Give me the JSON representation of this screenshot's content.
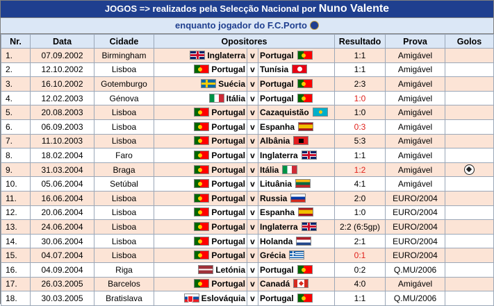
{
  "title": {
    "prefix": "JOGOS => realizados pela Selecção Nacional por ",
    "name": "Nuno Valente"
  },
  "subtitle": "enquanto jogador do F.C.Porto",
  "headers": {
    "nr": "Nr.",
    "data": "Data",
    "cidade": "Cidade",
    "opositores": "Opositores",
    "resultado": "Resultado",
    "prova": "Prova",
    "golos": "Golos"
  },
  "rows": [
    {
      "nr": "1.",
      "data": "07.09.2002",
      "cidade": "Birmingham",
      "home": "Inglaterra",
      "home_flag": "EN",
      "v": "v",
      "away": "Portugal",
      "away_flag": "PT",
      "resultado": "1:1",
      "result_color": "black",
      "prova": "Amigável",
      "golos": ""
    },
    {
      "nr": "2.",
      "data": "12.10.2002",
      "cidade": "Lisboa",
      "home": "Portugal",
      "home_flag": "PT",
      "v": "v",
      "away": "Tunísia",
      "away_flag": "TN",
      "resultado": "1:1",
      "result_color": "black",
      "prova": "Amigável",
      "golos": ""
    },
    {
      "nr": "3.",
      "data": "16.10.2002",
      "cidade": "Gotemburgo",
      "home": "Suécia",
      "home_flag": "SE",
      "v": "v",
      "away": "Portugal",
      "away_flag": "PT",
      "resultado": "2:3",
      "result_color": "black",
      "prova": "Amigável",
      "golos": ""
    },
    {
      "nr": "4.",
      "data": "12.02.2003",
      "cidade": "Génova",
      "home": "Itália",
      "home_flag": "IT",
      "v": "v",
      "away": "Portugal",
      "away_flag": "PT",
      "resultado": "1:0",
      "result_color": "red",
      "prova": "Amigável",
      "golos": ""
    },
    {
      "nr": "5.",
      "data": "20.08.2003",
      "cidade": "Lisboa",
      "home": "Portugal",
      "home_flag": "PT",
      "v": "v",
      "away": "Cazaquistão",
      "away_flag": "KZ",
      "resultado": "1:0",
      "result_color": "black",
      "prova": "Amigável",
      "golos": ""
    },
    {
      "nr": "6.",
      "data": "06.09.2003",
      "cidade": "Lisboa",
      "home": "Portugal",
      "home_flag": "PT",
      "v": "v",
      "away": "Espanha",
      "away_flag": "ES",
      "resultado": "0:3",
      "result_color": "red",
      "prova": "Amigável",
      "golos": ""
    },
    {
      "nr": "7.",
      "data": "11.10.2003",
      "cidade": "Lisboa",
      "home": "Portugal",
      "home_flag": "PT",
      "v": "v",
      "away": "Albânia",
      "away_flag": "AL",
      "resultado": "5:3",
      "result_color": "black",
      "prova": "Amigável",
      "golos": ""
    },
    {
      "nr": "8.",
      "data": "18.02.2004",
      "cidade": "Faro",
      "home": "Portugal",
      "home_flag": "PT",
      "v": "v",
      "away": "Inglaterra",
      "away_flag": "EN",
      "resultado": "1:1",
      "result_color": "black",
      "prova": "Amigável",
      "golos": ""
    },
    {
      "nr": "9.",
      "data": "31.03.2004",
      "cidade": "Braga",
      "home": "Portugal",
      "home_flag": "PT",
      "v": "v",
      "away": "Itália",
      "away_flag": "IT",
      "resultado": "1:2",
      "result_color": "red",
      "prova": "Amigável",
      "golos": "1"
    },
    {
      "nr": "10.",
      "data": "05.06.2004",
      "cidade": "Setúbal",
      "home": "Portugal",
      "home_flag": "PT",
      "v": "v",
      "away": "Lituânia",
      "away_flag": "LT",
      "resultado": "4:1",
      "result_color": "black",
      "prova": "Amigável",
      "golos": ""
    },
    {
      "nr": "11.",
      "data": "16.06.2004",
      "cidade": "Lisboa",
      "home": "Portugal",
      "home_flag": "PT",
      "v": "v",
      "away": "Russia",
      "away_flag": "RU",
      "resultado": "2:0",
      "result_color": "black",
      "prova": "EURO/2004",
      "golos": ""
    },
    {
      "nr": "12.",
      "data": "20.06.2004",
      "cidade": "Lisboa",
      "home": "Portugal",
      "home_flag": "PT",
      "v": "v",
      "away": "Espanha",
      "away_flag": "ES",
      "resultado": "1:0",
      "result_color": "black",
      "prova": "EURO/2004",
      "golos": ""
    },
    {
      "nr": "13.",
      "data": "24.06.2004",
      "cidade": "Lisboa",
      "home": "Portugal",
      "home_flag": "PT",
      "v": "v",
      "away": "Inglaterra",
      "away_flag": "EN",
      "resultado": "2:2 (6:5gp)",
      "result_color": "black",
      "prova": "EURO/2004",
      "golos": ""
    },
    {
      "nr": "14.",
      "data": "30.06.2004",
      "cidade": "Lisboa",
      "home": "Portugal",
      "home_flag": "PT",
      "v": "v",
      "away": "Holanda",
      "away_flag": "NL",
      "resultado": "2:1",
      "result_color": "black",
      "prova": "EURO/2004",
      "golos": ""
    },
    {
      "nr": "15.",
      "data": "04.07.2004",
      "cidade": "Lisboa",
      "home": "Portugal",
      "home_flag": "PT",
      "v": "v",
      "away": "Grécia",
      "away_flag": "GR",
      "resultado": "0:1",
      "result_color": "red",
      "prova": "EURO/2004",
      "golos": ""
    },
    {
      "nr": "16.",
      "data": "04.09.2004",
      "cidade": "Riga",
      "home": "Letónia",
      "home_flag": "LV",
      "v": "v",
      "away": "Portugal",
      "away_flag": "PT",
      "resultado": "0:2",
      "result_color": "black",
      "prova": "Q.MU/2006",
      "golos": ""
    },
    {
      "nr": "17.",
      "data": "26.03.2005",
      "cidade": "Barcelos",
      "home": "Portugal",
      "home_flag": "PT",
      "v": "v",
      "away": "Canadá",
      "away_flag": "CA",
      "resultado": "4:0",
      "result_color": "black",
      "prova": "Amigável",
      "golos": ""
    },
    {
      "nr": "18.",
      "data": "30.03.2005",
      "cidade": "Bratislava",
      "home": "Eslováquia",
      "home_flag": "SK",
      "v": "v",
      "away": "Portugal",
      "away_flag": "PT",
      "resultado": "1:1",
      "result_color": "black",
      "prova": "Q.MU/2006",
      "golos": ""
    }
  ],
  "colors": {
    "title_bg": "#1f3f8f",
    "header_bg": "#dbe7f6",
    "odd_row": "#fce4d6",
    "even_row": "#ffffff",
    "loss_text": "#e0201a"
  },
  "icons": {
    "goal": "soccer-ball-icon",
    "subtitle_badge": "fc-porto-crest-icon"
  }
}
